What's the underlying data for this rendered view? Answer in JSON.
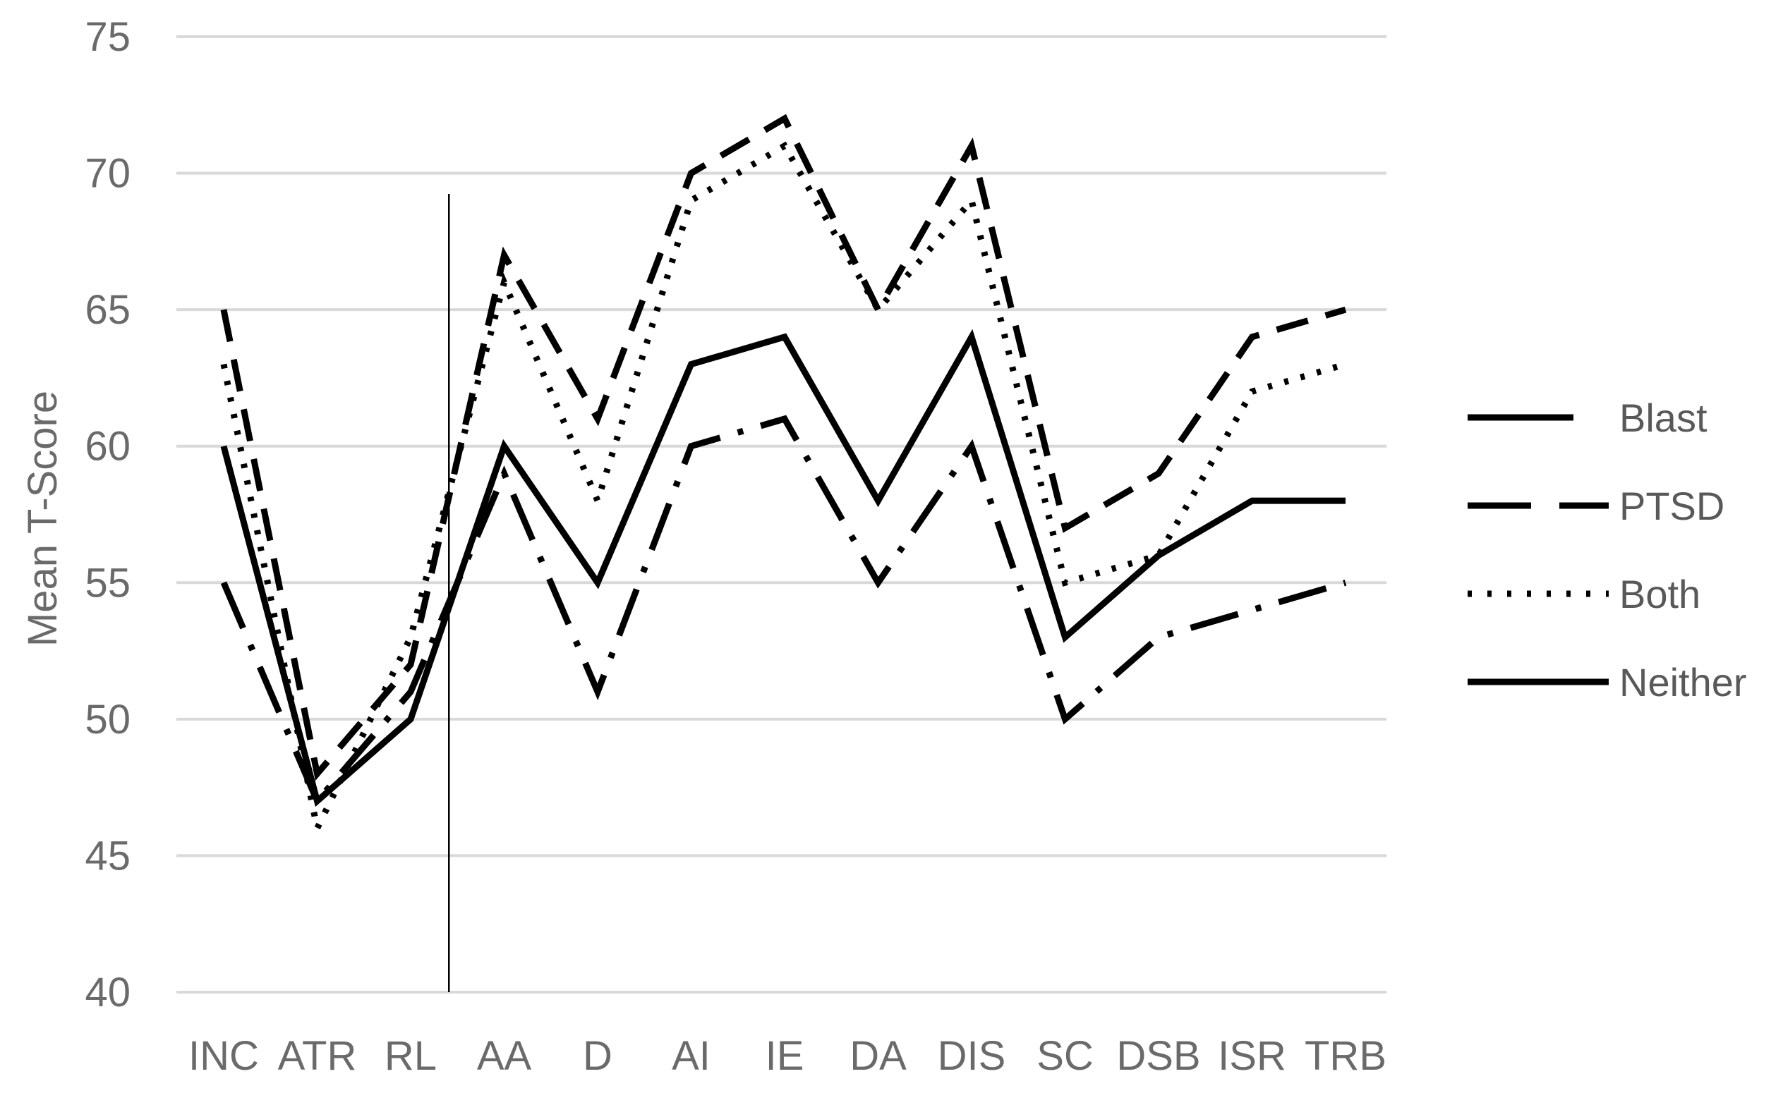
{
  "chart_data": {
    "type": "line",
    "title": "",
    "xlabel": "",
    "ylabel": "Mean T-Score",
    "ylim": [
      40,
      75
    ],
    "yticks": [
      "40",
      "45",
      "50",
      "55",
      "60",
      "65",
      "70",
      "75"
    ],
    "grid": true,
    "legend_position": "right",
    "categories": [
      "INC",
      "ATR",
      "RL",
      "AA",
      "D",
      "AI",
      "IE",
      "DA",
      "DIS",
      "SC",
      "DSB",
      "ISR",
      "TRB"
    ],
    "divider_between": [
      "RL",
      "AA"
    ],
    "series": [
      {
        "name": "Blast",
        "dash": "long-dash-dot",
        "values": [
          55,
          47,
          51,
          59,
          51,
          60,
          61,
          55,
          60,
          50,
          53,
          54,
          55
        ]
      },
      {
        "name": "PTSD",
        "dash": "dash",
        "values": [
          65,
          48,
          52,
          67,
          61,
          70,
          72,
          65,
          71,
          57,
          59,
          64,
          65
        ]
      },
      {
        "name": "Both",
        "dash": "dot",
        "values": [
          63,
          46,
          53,
          66,
          58,
          69,
          71,
          65,
          69,
          55,
          56,
          62,
          63
        ]
      },
      {
        "name": "Neither",
        "dash": "solid",
        "values": [
          60,
          47,
          50,
          60,
          55,
          63,
          64,
          58,
          64,
          53,
          56,
          58,
          58
        ]
      }
    ]
  }
}
